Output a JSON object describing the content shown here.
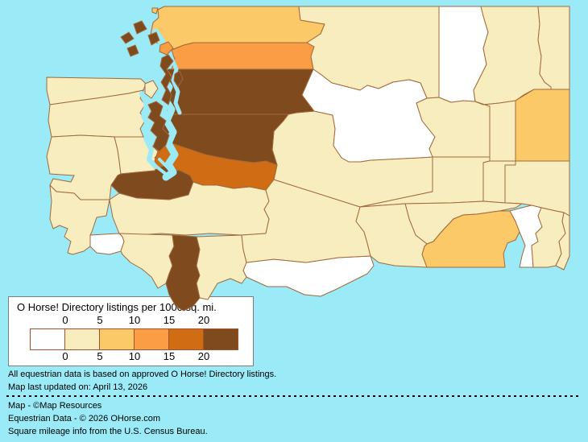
{
  "legend": {
    "title": "O Horse! Directory listings per 1000 sq. mi.",
    "tick_labels": [
      "0",
      "5",
      "10",
      "15",
      "20"
    ],
    "bin_colors": [
      "#FFFFFF",
      "#F8EDBF",
      "#FBC968",
      "#FA9D45",
      "#D06C13",
      "#7E4A1E"
    ],
    "swatch_border_color": "#A0522D"
  },
  "footer": {
    "line1": "All equestrian data is based on approved O Horse! Directory listings.",
    "line2": "Map last updated on: April 13, 2026",
    "line3": "Map - ©Map Resources",
    "line4": "Equestrian Data - © 2026 OHorse.com",
    "line5": "Square mileage info from the U.S. Census Bureau."
  },
  "map": {
    "region": "washington-state-counties",
    "water_color": "#9BEAF7",
    "outline_color": "#A2693A",
    "counties": [
      {
        "id": "clallam",
        "bin": 1
      },
      {
        "id": "jefferson",
        "bin": 1
      },
      {
        "id": "grays-harbor",
        "bin": 1
      },
      {
        "id": "mason",
        "bin": 1
      },
      {
        "id": "thurston",
        "bin": 5
      },
      {
        "id": "pacific",
        "bin": 1
      },
      {
        "id": "wahkiakum",
        "bin": 0
      },
      {
        "id": "lewis",
        "bin": 1
      },
      {
        "id": "cowlitz",
        "bin": 1
      },
      {
        "id": "clark",
        "bin": 5
      },
      {
        "id": "skamania",
        "bin": 1
      },
      {
        "id": "klickitat",
        "bin": 0
      },
      {
        "id": "yakima",
        "bin": 1
      },
      {
        "id": "kittitas",
        "bin": 1
      },
      {
        "id": "king",
        "bin": 5
      },
      {
        "id": "pierce",
        "bin": 4
      },
      {
        "id": "snohomish",
        "bin": 5
      },
      {
        "id": "skagit",
        "bin": 3
      },
      {
        "id": "whatcom",
        "bin": 2
      },
      {
        "id": "okanogan",
        "bin": 1
      },
      {
        "id": "chelan",
        "bin": 0
      },
      {
        "id": "douglas",
        "bin": 1
      },
      {
        "id": "ferry",
        "bin": 0
      },
      {
        "id": "stevens",
        "bin": 1
      },
      {
        "id": "pend-oreille",
        "bin": 1
      },
      {
        "id": "spokane",
        "bin": 2
      },
      {
        "id": "lincoln",
        "bin": 1
      },
      {
        "id": "grant",
        "bin": 1
      },
      {
        "id": "adams",
        "bin": 1
      },
      {
        "id": "whitman",
        "bin": 1
      },
      {
        "id": "franklin",
        "bin": 1
      },
      {
        "id": "benton",
        "bin": 1
      },
      {
        "id": "walla-walla",
        "bin": 2
      },
      {
        "id": "columbia",
        "bin": 0
      },
      {
        "id": "garfield",
        "bin": 1
      },
      {
        "id": "asotin",
        "bin": 1
      },
      {
        "id": "kitsap",
        "bin": 5
      },
      {
        "id": "island",
        "bin": 5
      },
      {
        "id": "san-juan",
        "bin": 5
      }
    ]
  }
}
